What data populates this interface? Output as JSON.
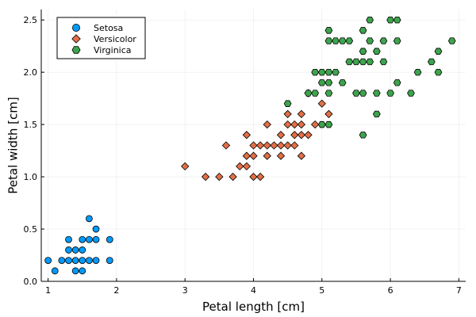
{
  "chart_data": {
    "type": "scatter",
    "xlabel": "Petal length [cm]",
    "ylabel": "Petal width [cm]",
    "xlim": [
      0.9,
      7.1
    ],
    "ylim": [
      0.0,
      2.6
    ],
    "xticks": [
      1,
      2,
      3,
      4,
      5,
      6,
      7
    ],
    "xtick_labels": [
      "1",
      "2",
      "3",
      "4",
      "5",
      "6",
      "7"
    ],
    "yticks": [
      0.0,
      0.5,
      1.0,
      1.5,
      2.0,
      2.5
    ],
    "ytick_labels": [
      "0.0",
      "0.5",
      "1.0",
      "1.5",
      "2.0",
      "2.5"
    ],
    "grid": true,
    "legend_position": "top-left",
    "series": [
      {
        "name": "Setosa",
        "marker": "circle",
        "color": "#009AF9",
        "points": [
          [
            1.0,
            0.2
          ],
          [
            1.1,
            0.1
          ],
          [
            1.2,
            0.2
          ],
          [
            1.3,
            0.2
          ],
          [
            1.3,
            0.3
          ],
          [
            1.3,
            0.4
          ],
          [
            1.4,
            0.1
          ],
          [
            1.4,
            0.2
          ],
          [
            1.4,
            0.3
          ],
          [
            1.5,
            0.1
          ],
          [
            1.5,
            0.2
          ],
          [
            1.5,
            0.3
          ],
          [
            1.5,
            0.4
          ],
          [
            1.6,
            0.2
          ],
          [
            1.6,
            0.4
          ],
          [
            1.6,
            0.6
          ],
          [
            1.7,
            0.2
          ],
          [
            1.7,
            0.4
          ],
          [
            1.7,
            0.5
          ],
          [
            1.9,
            0.2
          ],
          [
            1.9,
            0.4
          ]
        ]
      },
      {
        "name": "Versicolor",
        "marker": "diamond",
        "color": "#E26F46",
        "points": [
          [
            3.0,
            1.1
          ],
          [
            3.3,
            1.0
          ],
          [
            3.5,
            1.0
          ],
          [
            3.6,
            1.3
          ],
          [
            3.7,
            1.0
          ],
          [
            3.8,
            1.1
          ],
          [
            3.9,
            1.1
          ],
          [
            3.9,
            1.2
          ],
          [
            3.9,
            1.4
          ],
          [
            4.0,
            1.0
          ],
          [
            4.0,
            1.2
          ],
          [
            4.0,
            1.3
          ],
          [
            4.1,
            1.0
          ],
          [
            4.1,
            1.3
          ],
          [
            4.2,
            1.2
          ],
          [
            4.2,
            1.3
          ],
          [
            4.2,
            1.5
          ],
          [
            4.3,
            1.3
          ],
          [
            4.4,
            1.2
          ],
          [
            4.4,
            1.3
          ],
          [
            4.4,
            1.4
          ],
          [
            4.5,
            1.3
          ],
          [
            4.5,
            1.5
          ],
          [
            4.5,
            1.6
          ],
          [
            4.6,
            1.3
          ],
          [
            4.6,
            1.4
          ],
          [
            4.6,
            1.5
          ],
          [
            4.7,
            1.2
          ],
          [
            4.7,
            1.4
          ],
          [
            4.7,
            1.5
          ],
          [
            4.7,
            1.6
          ],
          [
            4.8,
            1.4
          ],
          [
            4.8,
            1.8
          ],
          [
            4.9,
            1.5
          ],
          [
            5.0,
            1.7
          ],
          [
            5.1,
            1.6
          ]
        ]
      },
      {
        "name": "Virginica",
        "marker": "hexagon",
        "color": "#3DA44D",
        "points": [
          [
            4.5,
            1.7
          ],
          [
            4.8,
            1.8
          ],
          [
            4.9,
            1.8
          ],
          [
            4.9,
            2.0
          ],
          [
            5.0,
            1.5
          ],
          [
            5.0,
            1.9
          ],
          [
            5.0,
            2.0
          ],
          [
            5.1,
            1.5
          ],
          [
            5.1,
            1.8
          ],
          [
            5.1,
            1.9
          ],
          [
            5.1,
            2.0
          ],
          [
            5.1,
            2.3
          ],
          [
            5.1,
            2.4
          ],
          [
            5.2,
            2.0
          ],
          [
            5.2,
            2.3
          ],
          [
            5.3,
            1.9
          ],
          [
            5.3,
            2.3
          ],
          [
            5.4,
            2.1
          ],
          [
            5.4,
            2.3
          ],
          [
            5.5,
            1.8
          ],
          [
            5.5,
            2.1
          ],
          [
            5.6,
            1.4
          ],
          [
            5.6,
            1.8
          ],
          [
            5.6,
            2.1
          ],
          [
            5.6,
            2.2
          ],
          [
            5.6,
            2.4
          ],
          [
            5.7,
            2.1
          ],
          [
            5.7,
            2.3
          ],
          [
            5.7,
            2.5
          ],
          [
            5.8,
            1.6
          ],
          [
            5.8,
            1.8
          ],
          [
            5.8,
            2.2
          ],
          [
            5.9,
            2.1
          ],
          [
            5.9,
            2.3
          ],
          [
            6.0,
            1.8
          ],
          [
            6.0,
            2.5
          ],
          [
            6.1,
            1.9
          ],
          [
            6.1,
            2.3
          ],
          [
            6.1,
            2.5
          ],
          [
            6.3,
            1.8
          ],
          [
            6.4,
            2.0
          ],
          [
            6.6,
            2.1
          ],
          [
            6.7,
            2.0
          ],
          [
            6.7,
            2.2
          ],
          [
            6.9,
            2.3
          ]
        ]
      }
    ]
  }
}
